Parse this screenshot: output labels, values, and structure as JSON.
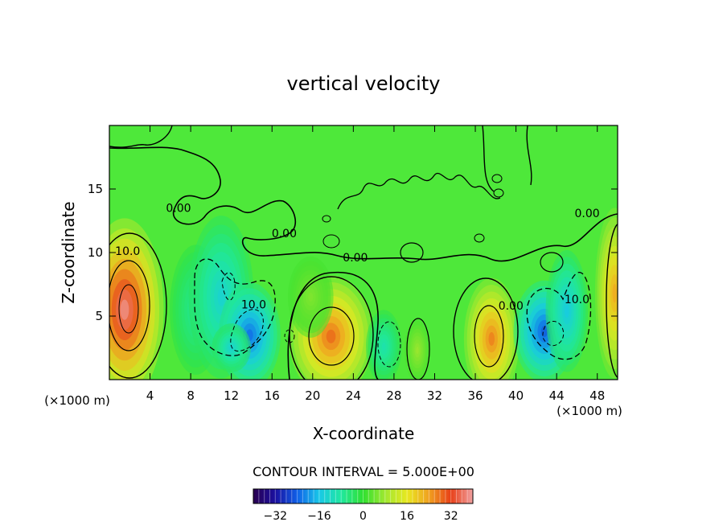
{
  "chart_data": {
    "type": "heatmap",
    "title": "vertical velocity",
    "xlabel": "X-coordinate",
    "ylabel": "Z-coordinate",
    "x_unit": "(×1000 m)",
    "xlim": [
      0,
      50
    ],
    "ylim": [
      0,
      20
    ],
    "x_ticks": [
      4,
      8,
      12,
      16,
      20,
      24,
      28,
      32,
      36,
      40,
      44,
      48
    ],
    "y_ticks": [
      5,
      10,
      15
    ],
    "contour_interval_label": "CONTOUR INTERVAL = 5.000E+00",
    "colorbar": {
      "range": [
        -40,
        40
      ],
      "ticks": [
        -32,
        -16,
        0,
        16,
        32
      ],
      "colors": [
        "#2a0050",
        "#1a10a0",
        "#1060e8",
        "#18c8e8",
        "#20e8a0",
        "#30e030",
        "#a0e830",
        "#e8e820",
        "#f0a020",
        "#e84018",
        "#f0a0a0"
      ]
    },
    "contour_labels": [
      {
        "text": "10.0",
        "x": 1.8,
        "y": 9.8
      },
      {
        "text": "0.00",
        "x": 6.8,
        "y": 13.2
      },
      {
        "text": "0.00",
        "x": 17.2,
        "y": 11.2
      },
      {
        "text": "10.0",
        "x": 14.2,
        "y": 5.6
      },
      {
        "text": "0.00",
        "x": 24.2,
        "y": 9.3
      },
      {
        "text": "0.00",
        "x": 47.0,
        "y": 12.8
      },
      {
        "text": "0.00",
        "x": 39.5,
        "y": 5.5
      },
      {
        "text": "10.0",
        "x": 46.0,
        "y": 6.0
      }
    ],
    "cells": [
      {
        "x": 1.5,
        "y": 5.5,
        "sx": 2.4,
        "sy": 4.5,
        "v": 40
      },
      {
        "x": 8.5,
        "y": 5.5,
        "sx": 1.6,
        "sy": 3.2,
        "v": -8
      },
      {
        "x": 11.0,
        "y": 6.5,
        "sx": 2.0,
        "sy": 4.0,
        "v": -14
      },
      {
        "x": 13.8,
        "y": 3.5,
        "sx": 1.9,
        "sy": 2.6,
        "v": -24
      },
      {
        "x": 12.0,
        "y": 2.5,
        "sx": 1.2,
        "sy": 1.2,
        "v": -14
      },
      {
        "x": 21.8,
        "y": 3.4,
        "sx": 2.6,
        "sy": 3.0,
        "v": 30
      },
      {
        "x": 19.8,
        "y": 6.5,
        "sx": 1.4,
        "sy": 2.0,
        "v": 6
      },
      {
        "x": 27.0,
        "y": 2.6,
        "sx": 1.1,
        "sy": 1.8,
        "v": -10
      },
      {
        "x": 30.3,
        "y": 2.3,
        "sx": 0.8,
        "sy": 1.6,
        "v": 8
      },
      {
        "x": 37.6,
        "y": 3.2,
        "sx": 1.7,
        "sy": 3.0,
        "v": 28
      },
      {
        "x": 42.8,
        "y": 3.8,
        "sx": 1.9,
        "sy": 2.5,
        "v": -26
      },
      {
        "x": 45.0,
        "y": 5.4,
        "sx": 1.3,
        "sy": 3.0,
        "v": -16
      },
      {
        "x": 49.7,
        "y": 6.8,
        "sx": 1.2,
        "sy": 4.2,
        "v": 24
      }
    ]
  }
}
